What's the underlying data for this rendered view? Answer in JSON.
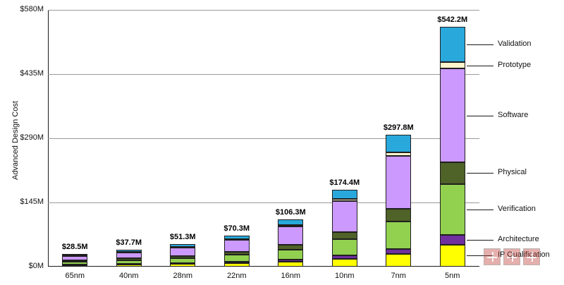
{
  "chart_data": {
    "type": "bar",
    "stacked": true,
    "title": "",
    "xlabel": "",
    "ylabel": "Advanced Design Cost",
    "ylim": [
      0,
      580
    ],
    "yticks": [
      0,
      145,
      290,
      435,
      580
    ],
    "ytick_labels": [
      "$0M",
      "$145M",
      "$290M",
      "$435M",
      "$580M"
    ],
    "grid": "horizontal",
    "categories": [
      "65nm",
      "40nm",
      "28nm",
      "22nm",
      "16nm",
      "10nm",
      "7nm",
      "5nm"
    ],
    "totals": [
      28.5,
      37.7,
      51.3,
      70.3,
      106.3,
      174.4,
      297.8,
      542.2
    ],
    "total_labels": [
      "$28.5M",
      "$37.7M",
      "$51.3M",
      "$70.3M",
      "$106.3M",
      "$174.4M",
      "$297.8M",
      "$542.2M"
    ],
    "series": [
      {
        "name": "IP Qualification",
        "color": "#FFFF00",
        "values": [
          3.5,
          4.5,
          6.0,
          8.0,
          11.5,
          17.5,
          28.0,
          50.0
        ]
      },
      {
        "name": "Architecture",
        "color": "#7030A0",
        "values": [
          1.5,
          2.0,
          2.5,
          3.3,
          5.0,
          7.5,
          12.5,
          22.2
        ]
      },
      {
        "name": "Verification",
        "color": "#92D050",
        "values": [
          6.0,
          8.0,
          11.0,
          15.0,
          22.5,
          37.0,
          62.0,
          115.0
        ]
      },
      {
        "name": "Physical",
        "color": "#4F6228",
        "values": [
          3.0,
          4.0,
          5.0,
          7.0,
          10.0,
          16.5,
          27.5,
          48.0
        ]
      },
      {
        "name": "Software",
        "color": "#CC99FF",
        "values": [
          10.5,
          14.0,
          19.3,
          26.5,
          41.3,
          69.4,
          120.3,
          212.0
        ]
      },
      {
        "name": "Prototype",
        "color": "#FFF5CC",
        "values": [
          1.0,
          1.2,
          1.5,
          2.0,
          3.0,
          5.0,
          8.5,
          15.0
        ]
      },
      {
        "name": "Validation",
        "color": "#29A8DC",
        "values": [
          3.0,
          4.0,
          6.0,
          8.5,
          13.0,
          21.5,
          39.0,
          80.0
        ]
      }
    ],
    "legend": [
      "Validation",
      "Prototype",
      "Software",
      "Physical",
      "Verification",
      "Architecture",
      "IP Qualification"
    ],
    "legend_position": "right"
  }
}
